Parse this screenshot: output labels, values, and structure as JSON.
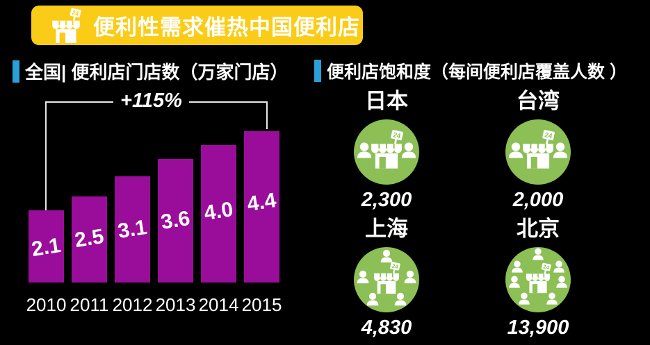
{
  "banner": {
    "title": "便利性需求催热中国便利店"
  },
  "left_panel": {
    "title": "全国| 便利店门店数（万家门店）",
    "growth_label": "+115%"
  },
  "right_panel": {
    "title": "便利店饱和度（每间便利店覆盖人数 ）",
    "items": [
      {
        "name": "日本",
        "value": "2,300",
        "people": 2
      },
      {
        "name": "台湾",
        "value": "2,000",
        "people": 2
      },
      {
        "name": "上海",
        "value": "4,830",
        "people": 5
      },
      {
        "name": "北京",
        "value": "13,900",
        "people": 7
      }
    ]
  },
  "chart_data": {
    "type": "bar",
    "title": "全国| 便利店门店数（万家门店）",
    "categories": [
      "2010",
      "2011",
      "2012",
      "2013",
      "2014",
      "2015"
    ],
    "values": [
      2.1,
      2.5,
      3.1,
      3.6,
      4.0,
      4.4
    ],
    "annotation": "+115%",
    "ylim": [
      0,
      5
    ],
    "grid": false,
    "bar_color": "#9A0D9A"
  },
  "icons": {
    "banner_icon": "store-24-icon",
    "circle_icon": "store-with-people-icon"
  },
  "colors": {
    "background": "#000000",
    "banner_bg": "#FACC17",
    "banner_text": "#FFFFFF",
    "accent_blue": "#2B9FD8",
    "bar_purple": "#9A0D9A",
    "circle_green": "#8CBF55",
    "text_white": "#FFFFFF"
  }
}
